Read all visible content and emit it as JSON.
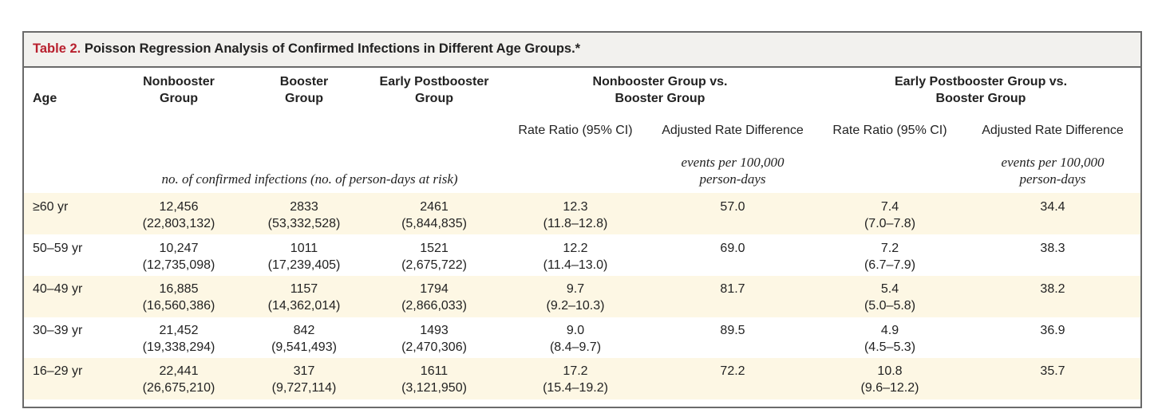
{
  "table": {
    "label": "Table 2.",
    "title": "Poisson Regression Analysis of Confirmed Infections in Different Age Groups.*",
    "headers": {
      "age": "Age",
      "nonbooster": [
        "Nonbooster",
        "Group"
      ],
      "booster": [
        "Booster",
        "Group"
      ],
      "early": [
        "Early Postbooster",
        "Group"
      ],
      "nb_vs_b": [
        "Nonbooster Group vs.",
        "Booster Group"
      ],
      "epb_vs_b": [
        "Early Postbooster Group vs.",
        "Booster Group"
      ],
      "rate_ratio": "Rate Ratio (95% CI)",
      "adj_diff": "Adjusted Rate Difference",
      "units_infections": "no. of confirmed infections (no. of person-days at risk)",
      "units_events": [
        "events per 100,000",
        "person-days"
      ]
    },
    "rows": [
      {
        "age": "≥60 yr",
        "nonbooster": [
          "12,456",
          "(22,803,132)"
        ],
        "booster": [
          "2833",
          "(53,332,528)"
        ],
        "early": [
          "2461",
          "(5,844,835)"
        ],
        "rr1": [
          "12.3",
          "(11.8–12.8)"
        ],
        "diff1": "57.0",
        "rr2": [
          "7.4",
          "(7.0–7.8)"
        ],
        "diff2": "34.4"
      },
      {
        "age": "50–59 yr",
        "nonbooster": [
          "10,247",
          "(12,735,098)"
        ],
        "booster": [
          "1011",
          "(17,239,405)"
        ],
        "early": [
          "1521",
          "(2,675,722)"
        ],
        "rr1": [
          "12.2",
          "(11.4–13.0)"
        ],
        "diff1": "69.0",
        "rr2": [
          "7.2",
          "(6.7–7.9)"
        ],
        "diff2": "38.3"
      },
      {
        "age": "40–49 yr",
        "nonbooster": [
          "16,885",
          "(16,560,386)"
        ],
        "booster": [
          "1157",
          "(14,362,014)"
        ],
        "early": [
          "1794",
          "(2,866,033)"
        ],
        "rr1": [
          "9.7",
          "(9.2–10.3)"
        ],
        "diff1": "81.7",
        "rr2": [
          "5.4",
          "(5.0–5.8)"
        ],
        "diff2": "38.2"
      },
      {
        "age": "30–39 yr",
        "nonbooster": [
          "21,452",
          "(19,338,294)"
        ],
        "booster": [
          "842",
          "(9,541,493)"
        ],
        "early": [
          "1493",
          "(2,470,306)"
        ],
        "rr1": [
          "9.0",
          "(8.4–9.7)"
        ],
        "diff1": "89.5",
        "rr2": [
          "4.9",
          "(4.5–5.3)"
        ],
        "diff2": "36.9"
      },
      {
        "age": "16–29 yr",
        "nonbooster": [
          "22,441",
          "(26,675,210)"
        ],
        "booster": [
          "317",
          "(9,727,114)"
        ],
        "early": [
          "1611",
          "(3,121,950)"
        ],
        "rr1": [
          "17.2",
          "(15.4–19.2)"
        ],
        "diff1": "72.2",
        "rr2": [
          "10.8",
          "(9.6–12.2)"
        ],
        "diff2": "35.7"
      }
    ],
    "colors": {
      "label": "#b8202e",
      "band": "#fdf7e4",
      "header_bg": "#f2f1ee",
      "border": "#6a6a6a"
    }
  }
}
